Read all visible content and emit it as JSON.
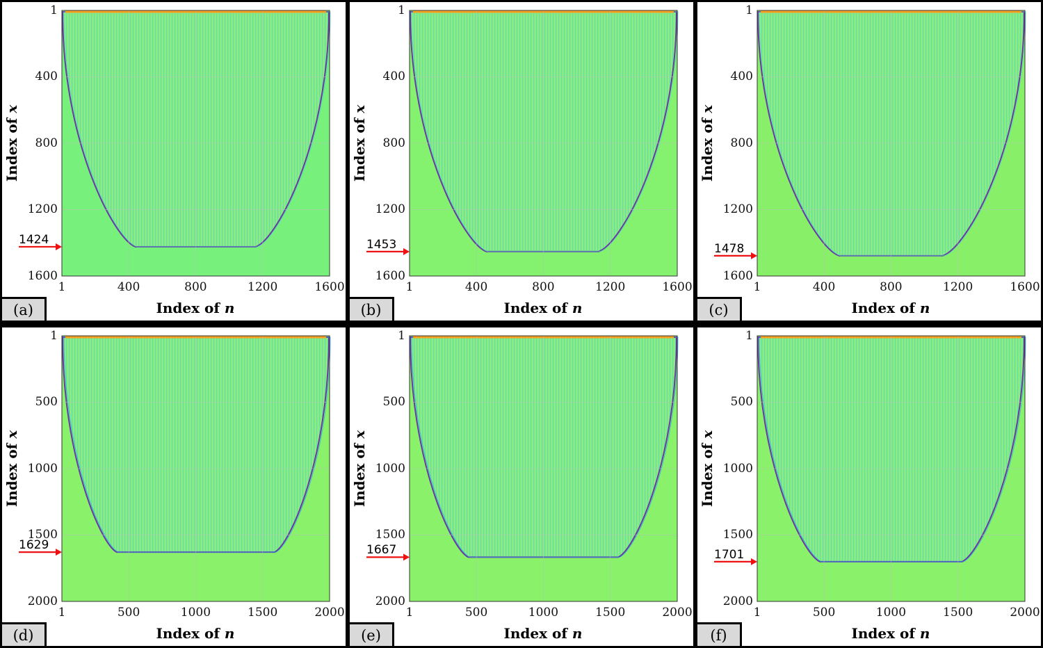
{
  "chart_data": [
    {
      "type": "heatmap",
      "panel": "(a)",
      "xlabel": "Index of ",
      "xvar": "n",
      "ylabel": "Index of ",
      "yvar": "x",
      "xticks": [
        "1",
        "400",
        "800",
        "1200",
        "1600"
      ],
      "xtick_values": [
        1,
        400,
        800,
        1200,
        1600
      ],
      "yticks": [
        "1",
        "400",
        "800",
        "1200",
        "1600"
      ],
      "ytick_values": [
        1,
        400,
        800,
        1200,
        1600
      ],
      "xlim": [
        1,
        1600
      ],
      "ylim": [
        1,
        1600
      ],
      "cutoff": 1424,
      "cutoff_label": "1424",
      "bottom_left_x": 440,
      "bottom_right_x": 1160,
      "left_top_x": 1,
      "right_top_x": 1600,
      "background_color": "#78f07c"
    },
    {
      "type": "heatmap",
      "panel": "(b)",
      "xlabel": "Index of ",
      "xvar": "n",
      "ylabel": "Index of ",
      "yvar": "x",
      "xticks": [
        "1",
        "400",
        "800",
        "1200",
        "1600"
      ],
      "xtick_values": [
        1,
        400,
        800,
        1200,
        1600
      ],
      "yticks": [
        "1",
        "400",
        "800",
        "1200",
        "1600"
      ],
      "ytick_values": [
        1,
        400,
        800,
        1200,
        1600
      ],
      "xlim": [
        1,
        1600
      ],
      "ylim": [
        1,
        1600
      ],
      "cutoff": 1453,
      "cutoff_label": "1453",
      "bottom_left_x": 460,
      "bottom_right_x": 1130,
      "left_top_x": 1,
      "right_top_x": 1600,
      "background_color": "#84f26e"
    },
    {
      "type": "heatmap",
      "panel": "(c)",
      "xlabel": "Index of ",
      "xvar": "n",
      "ylabel": "Index of ",
      "yvar": "x",
      "xticks": [
        "1",
        "400",
        "800",
        "1200",
        "1600"
      ],
      "xtick_values": [
        1,
        400,
        800,
        1200,
        1600
      ],
      "yticks": [
        "1",
        "400",
        "800",
        "1200",
        "1600"
      ],
      "ytick_values": [
        1,
        400,
        800,
        1200,
        1600
      ],
      "xlim": [
        1,
        1600
      ],
      "ylim": [
        1,
        1600
      ],
      "cutoff": 1478,
      "cutoff_label": "1478",
      "bottom_left_x": 490,
      "bottom_right_x": 1110,
      "left_top_x": 1,
      "right_top_x": 1600,
      "background_color": "#88f068"
    },
    {
      "type": "heatmap",
      "panel": "(d)",
      "xlabel": "Index of ",
      "xvar": "n",
      "ylabel": "Index of ",
      "yvar": "x",
      "xticks": [
        "1",
        "500",
        "1000",
        "1500",
        "2000"
      ],
      "xtick_values": [
        1,
        500,
        1000,
        1500,
        2000
      ],
      "yticks": [
        "1",
        "500",
        "1000",
        "1500",
        "2000"
      ],
      "ytick_values": [
        1,
        500,
        1000,
        1500,
        2000
      ],
      "xlim": [
        1,
        2000
      ],
      "ylim": [
        1,
        2000
      ],
      "cutoff": 1629,
      "cutoff_label": "1629",
      "bottom_left_x": 410,
      "bottom_right_x": 1590,
      "left_top_x": 1,
      "right_top_x": 2000,
      "background_color": "#8af26a"
    },
    {
      "type": "heatmap",
      "panel": "(e)",
      "xlabel": "Index of ",
      "xvar": "n",
      "ylabel": "Index of ",
      "yvar": "x",
      "xticks": [
        "1",
        "500",
        "1000",
        "1500",
        "2000"
      ],
      "xtick_values": [
        1,
        500,
        1000,
        1500,
        2000
      ],
      "yticks": [
        "1",
        "500",
        "1000",
        "1500",
        "2000"
      ],
      "ytick_values": [
        1,
        500,
        1000,
        1500,
        2000
      ],
      "xlim": [
        1,
        2000
      ],
      "ylim": [
        1,
        2000
      ],
      "cutoff": 1667,
      "cutoff_label": "1667",
      "bottom_left_x": 440,
      "bottom_right_x": 1560,
      "left_top_x": 1,
      "right_top_x": 2000,
      "background_color": "#8af26a"
    },
    {
      "type": "heatmap",
      "panel": "(f)",
      "xlabel": "Index of ",
      "xvar": "n",
      "ylabel": "Index of ",
      "yvar": "x",
      "xticks": [
        "1",
        "500",
        "1000",
        "1500",
        "2000"
      ],
      "xtick_values": [
        1,
        500,
        1000,
        1500,
        2000
      ],
      "yticks": [
        "1",
        "500",
        "1000",
        "1500",
        "2000"
      ],
      "ytick_values": [
        1,
        500,
        1000,
        1500,
        2000
      ],
      "xlim": [
        1,
        2000
      ],
      "ylim": [
        1,
        2000
      ],
      "cutoff": 1701,
      "cutoff_label": "1701",
      "bottom_left_x": 470,
      "bottom_right_x": 1530,
      "left_top_x": 1,
      "right_top_x": 2000,
      "background_color": "#8af26a"
    }
  ],
  "colors": {
    "interior": "#82ea86",
    "stripe": "#48d8c8",
    "stripe_alt": "#c8ee56",
    "edge": "#6a3aa0",
    "edge_hot": "#f5a020",
    "edge_cold": "#20a8f0",
    "grid": "#b8c0b8",
    "arrow": "#ee1111"
  }
}
